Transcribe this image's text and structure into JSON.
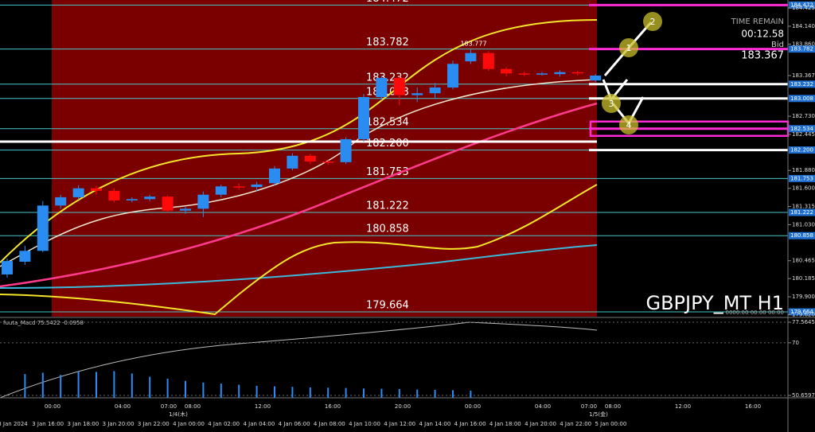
{
  "chart_data": {
    "type": "candlestick",
    "symbol_label": "GBPJPY_MT H1",
    "timer_label": "TIME REMAIN",
    "timer": "00:12.58",
    "bid_label": "Bid",
    "bid": 183.367,
    "peak_label": 183.777,
    "up_color": "#2a8cf0",
    "down_color": "#ff0a0a",
    "open": [
      180.25,
      180.45,
      180.62,
      181.33,
      181.46,
      181.6,
      181.56,
      181.41,
      181.43,
      181.47,
      181.25,
      181.28,
      181.5,
      181.63,
      181.62,
      181.68,
      181.91,
      182.11,
      182.02,
      182.01,
      182.37,
      183.03,
      183.33,
      183.06,
      183.09,
      183.18,
      183.59,
      183.72,
      183.47,
      183.4,
      183.39,
      183.39,
      183.42,
      183.29
    ],
    "high": [
      180.5,
      180.7,
      181.4,
      181.5,
      181.65,
      181.64,
      181.6,
      181.46,
      181.5,
      181.49,
      181.31,
      181.55,
      181.66,
      181.68,
      181.7,
      181.95,
      182.15,
      182.14,
      182.05,
      182.4,
      183.08,
      183.36,
      183.36,
      183.18,
      183.25,
      183.6,
      183.777,
      183.75,
      183.5,
      183.43,
      183.42,
      183.45,
      183.44,
      183.39
    ],
    "low": [
      180.2,
      180.4,
      180.6,
      181.28,
      181.42,
      181.5,
      181.38,
      181.38,
      181.4,
      181.22,
      181.2,
      181.15,
      181.46,
      181.58,
      181.55,
      181.65,
      181.88,
      181.98,
      181.97,
      181.98,
      182.33,
      182.98,
      182.9,
      182.95,
      183.0,
      183.15,
      183.55,
      183.44,
      183.36,
      183.36,
      183.37,
      183.35,
      183.37,
      183.27
    ],
    "close": [
      180.46,
      180.62,
      181.33,
      181.46,
      181.6,
      181.56,
      181.41,
      181.43,
      181.47,
      181.25,
      181.28,
      181.5,
      181.63,
      181.62,
      181.66,
      181.91,
      182.11,
      182.02,
      182.01,
      182.37,
      183.03,
      183.33,
      183.06,
      183.09,
      183.18,
      183.55,
      183.72,
      183.47,
      183.4,
      183.39,
      183.4,
      183.42,
      183.4,
      183.367
    ],
    "ylim": [
      179.589,
      184.551
    ],
    "yticks": [
      184.425,
      {
        "value": 184.14,
        "label": "184.140"
      },
      {
        "value": 183.86,
        "label": "183.860"
      },
      {
        "value": 183.367,
        "label": "183.367"
      },
      {
        "value": 182.73,
        "label": "182.730"
      },
      182.445,
      {
        "value": 181.88,
        "label": "181.880"
      },
      {
        "value": 181.6,
        "label": "181.600"
      },
      181.315,
      {
        "value": 181.03,
        "label": "181.030"
      },
      180.465,
      180.185,
      {
        "value": 179.9,
        "label": "179.900"
      },
      {
        "value": 179.62,
        "label": "179.620"
      }
    ],
    "levels": [
      184.472,
      183.782,
      183.232,
      {
        "value": 183.008,
        "label": "183.008"
      },
      182.534,
      {
        "value": 182.2,
        "label": "182.200"
      },
      181.753,
      181.222,
      180.858,
      179.664
    ],
    "level_colors": [
      "#ff2bd6",
      "#ff2bd6",
      "#ffffff",
      "#ffffff",
      "#ff2bd6",
      "#ffffff",
      "#49c6c6",
      "#49c6c6",
      "#49c6c6",
      "#49c6c6"
    ],
    "annotations": [
      "2",
      "1",
      "3",
      "4"
    ],
    "x_labels": [
      "3 Jan 2024",
      "3 Jan 16:00",
      "3 Jan 18:00",
      "3 Jan 20:00",
      "3 Jan 22:00",
      "4 Jan 00:00",
      "4 Jan 02:00",
      "4 Jan 04:00",
      "4 Jan 06:00",
      "4 Jan 08:00",
      "4 Jan 10:00",
      "4 Jan 12:00",
      "4 Jan 14:00",
      "4 Jan 16:00",
      "4 Jan 18:00",
      "4 Jan 20:00",
      "4 Jan 22:00",
      "5 Jan 00:00"
    ],
    "x_labels_local": [
      "00:00",
      "04:00",
      "07:00",
      "08:00",
      "12:00",
      "16:00",
      "20:00",
      "00:00",
      "04:00",
      "07:00",
      "08:00",
      "12:00",
      "16:00"
    ],
    "date_labels": [
      "1/4(木)",
      "1/5(金)"
    ],
    "indicator": {
      "name": "fuuta_Macd 75.5422 -0.0958",
      "reset_label": "0000.00 00.00 00.00",
      "ylim": [
        49.78,
        79.03
      ],
      "yticks": [
        77.5645,
        70,
        50.6597
      ],
      "color": "#2a8cf0",
      "histogram": [
        null,
        58.5,
        59.0,
        58.2,
        59.4,
        59.3,
        59.6,
        58.7,
        57.5,
        56.8,
        56.0,
        55.4,
        55.0,
        54.6,
        54.2,
        54.0,
        53.8,
        53.6,
        53.5,
        53.4,
        53.2,
        53.1,
        53.0,
        52.8,
        52.7,
        52.6,
        52.4,
        null,
        null,
        null,
        null,
        null,
        null,
        null
      ]
    }
  }
}
